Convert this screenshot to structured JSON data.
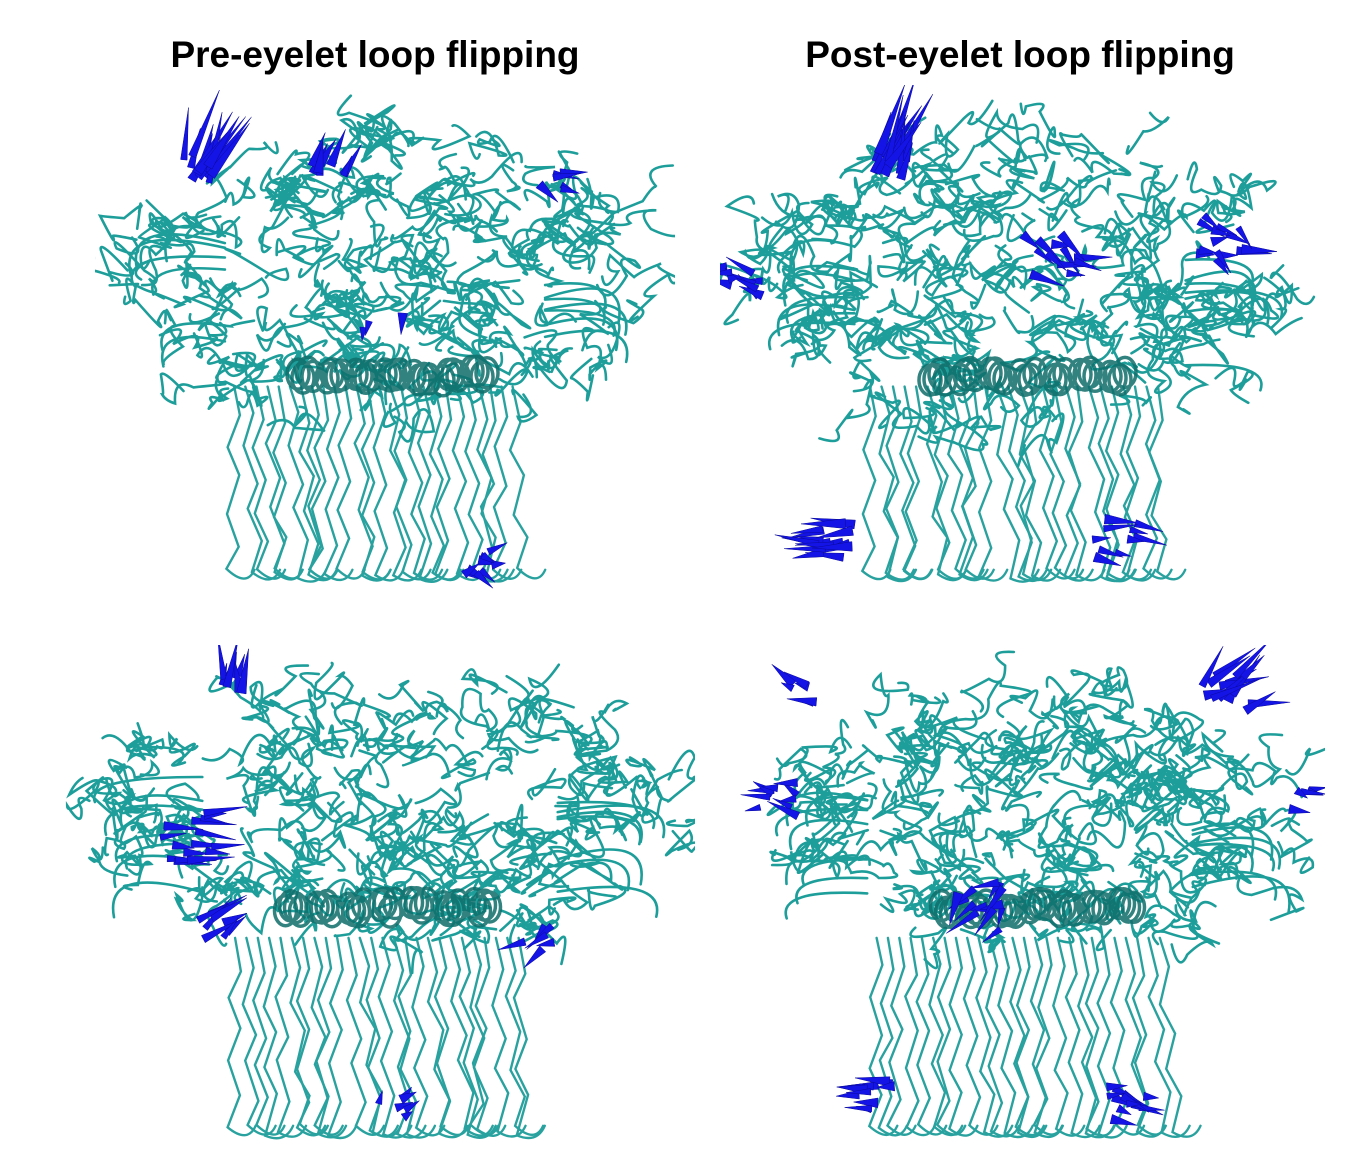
{
  "titles": {
    "left": "Pre-eyelet loop flipping",
    "right": "Post-eyelet loop flipping"
  },
  "colors": {
    "protein": "#1e9e9a",
    "protein_dark": "#0f6e6b",
    "arrows": "#1414e6"
  },
  "panels": [
    {
      "name": "pre-eyelet-side-view",
      "column": "left",
      "row": "top"
    },
    {
      "name": "post-eyelet-side-view",
      "column": "right",
      "row": "top"
    },
    {
      "name": "pre-eyelet-alt-view",
      "column": "left",
      "row": "bottom"
    },
    {
      "name": "post-eyelet-alt-view",
      "column": "right",
      "row": "bottom"
    }
  ]
}
